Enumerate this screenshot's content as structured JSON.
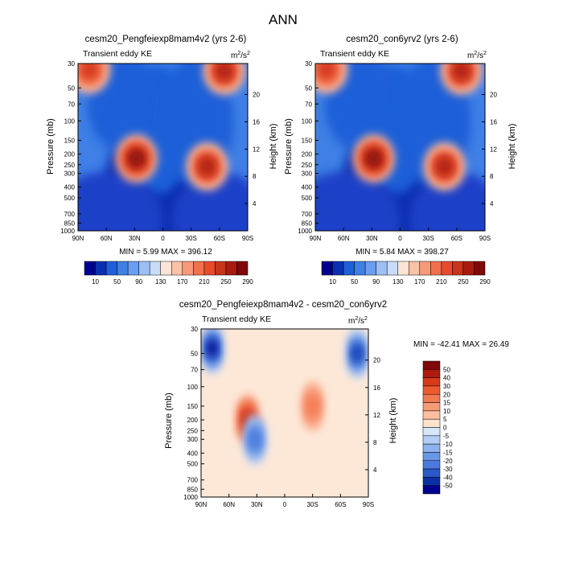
{
  "figure": {
    "title": "ANN"
  },
  "chart_data": [
    {
      "type": "heatmap",
      "title": "cesm20_Pengfeiexp8mam4v2 (yrs 2-6)",
      "subtitle": "Transient eddy KE",
      "units": {
        "base": "m",
        "exp": "2",
        "sep": "/",
        "base2": "s",
        "exp2": "2"
      },
      "xlabel": "",
      "ylabel": "Pressure (mb)",
      "y2label": "Height (km)",
      "x_ticks": [
        "90N",
        "60N",
        "30N",
        "0",
        "30S",
        "60S",
        "90S"
      ],
      "y_ticks": [
        "30",
        "50",
        "70",
        "100",
        "150",
        "200",
        "250",
        "300",
        "400",
        "500",
        "700",
        "850",
        "1000"
      ],
      "y2_ticks": [
        "20",
        "16",
        "12",
        "8",
        "4"
      ],
      "stats": "MIN =  5.99  MAX = 396.12",
      "colorbar": {
        "labels": [
          "10",
          "50",
          "90",
          "130",
          "170",
          "210",
          "250",
          "290"
        ],
        "colors": [
          "#00008f",
          "#0a2fb0",
          "#1f5fd8",
          "#3f7fe6",
          "#6a9ef0",
          "#9cc0f5",
          "#c8dcf9",
          "#fde4d4",
          "#fbc2a6",
          "#f79a7a",
          "#f2704c",
          "#e84a2a",
          "#c8341a",
          "#a81c10",
          "#800808"
        ]
      },
      "blobs": [
        {
          "name": "nh-jet",
          "lat": -28,
          "p": 220,
          "value": 360
        },
        {
          "name": "sh-jet",
          "lat": 47,
          "p": 260,
          "value": 300
        },
        {
          "name": "sh-strat",
          "lat": 65,
          "p": 35,
          "value": 300
        },
        {
          "name": "nh-strat",
          "lat": -78,
          "p": 34,
          "value": 230
        }
      ]
    },
    {
      "type": "heatmap",
      "title": "cesm20_con6yrv2 (yrs 2-6)",
      "subtitle": "Transient eddy KE",
      "units": {
        "base": "m",
        "exp": "2",
        "sep": "/",
        "base2": "s",
        "exp2": "2"
      },
      "xlabel": "",
      "ylabel": "Pressure (mb)",
      "y2label": "Height (km)",
      "x_ticks": [
        "90N",
        "60N",
        "30N",
        "0",
        "30S",
        "60S",
        "90S"
      ],
      "y_ticks": [
        "30",
        "50",
        "70",
        "100",
        "150",
        "200",
        "250",
        "300",
        "400",
        "500",
        "700",
        "850",
        "1000"
      ],
      "y2_ticks": [
        "20",
        "16",
        "12",
        "8",
        "4"
      ],
      "stats": "MIN =  5.84  MAX = 398.27",
      "colorbar": {
        "labels": [
          "10",
          "50",
          "90",
          "130",
          "170",
          "210",
          "250",
          "290"
        ],
        "colors": [
          "#00008f",
          "#0a2fb0",
          "#1f5fd8",
          "#3f7fe6",
          "#6a9ef0",
          "#9cc0f5",
          "#c8dcf9",
          "#fde4d4",
          "#fbc2a6",
          "#f79a7a",
          "#f2704c",
          "#e84a2a",
          "#c8341a",
          "#a81c10",
          "#800808"
        ]
      },
      "blobs": [
        {
          "name": "nh-jet",
          "lat": -28,
          "p": 220,
          "value": 370
        },
        {
          "name": "sh-jet",
          "lat": 47,
          "p": 260,
          "value": 300
        },
        {
          "name": "sh-strat",
          "lat": 65,
          "p": 35,
          "value": 310
        },
        {
          "name": "nh-strat",
          "lat": -78,
          "p": 34,
          "value": 235
        }
      ]
    },
    {
      "type": "heatmap",
      "title": "cesm20_Pengfeiexp8mam4v2 - cesm20_con6yrv2",
      "subtitle": "Transient eddy KE",
      "units": {
        "base": "m",
        "exp": "2",
        "sep": "/",
        "base2": "s",
        "exp2": "2"
      },
      "xlabel": "",
      "ylabel": "Pressure (mb)",
      "y2label": "Height (km)",
      "x_ticks": [
        "90N",
        "60N",
        "30N",
        "0",
        "30S",
        "60S",
        "90S"
      ],
      "y_ticks": [
        "30",
        "50",
        "70",
        "100",
        "150",
        "200",
        "250",
        "300",
        "400",
        "500",
        "700",
        "850",
        "1000"
      ],
      "y2_ticks": [
        "20",
        "16",
        "12",
        "8",
        "4"
      ],
      "stats": "MIN = -42.41  MAX =  26.49",
      "colorbar": {
        "labels": [
          "50",
          "40",
          "30",
          "20",
          "15",
          "10",
          "5",
          "0",
          "-5",
          "-10",
          "-15",
          "-20",
          "-30",
          "-40",
          "-50"
        ],
        "colors": [
          "#800808",
          "#b01a10",
          "#d83a1a",
          "#ee5a30",
          "#f47a52",
          "#f89a78",
          "#fbbfa0",
          "#fde2cc",
          "#d8e6fa",
          "#b4cdf5",
          "#8eb2ee",
          "#6a96e6",
          "#4a7ade",
          "#2a58c8",
          "#0a30a8",
          "#00008f"
        ]
      },
      "blobs": [
        {
          "name": "nh-jet-pos",
          "lat": -40,
          "p": 200,
          "value": 25
        },
        {
          "name": "nh-jet-neg",
          "lat": -32,
          "p": 300,
          "value": -22
        },
        {
          "name": "sh-pos",
          "lat": 30,
          "p": 150,
          "value": 12
        },
        {
          "name": "nh-polar-neg",
          "lat": -78,
          "p": 45,
          "value": -35
        },
        {
          "name": "sh-polar-neg",
          "lat": 78,
          "p": 50,
          "value": -30
        }
      ]
    }
  ]
}
